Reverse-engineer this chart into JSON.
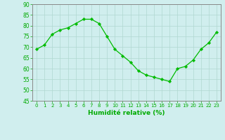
{
  "x": [
    0,
    1,
    2,
    3,
    4,
    5,
    6,
    7,
    8,
    9,
    10,
    11,
    12,
    13,
    14,
    15,
    16,
    17,
    18,
    19,
    20,
    21,
    22,
    23
  ],
  "y": [
    69,
    71,
    76,
    78,
    79,
    81,
    83,
    83,
    81,
    75,
    69,
    66,
    63,
    59,
    57,
    56,
    55,
    54,
    60,
    61,
    64,
    69,
    72,
    77
  ],
  "line_color": "#00bb00",
  "marker_color": "#00bb00",
  "bg_color": "#d0eeee",
  "grid_color": "#b0d8d0",
  "xlabel": "Humidité relative (%)",
  "xlabel_color": "#00aa00",
  "tick_color": "#00aa00",
  "ylim": [
    45,
    90
  ],
  "yticks": [
    45,
    50,
    55,
    60,
    65,
    70,
    75,
    80,
    85,
    90
  ],
  "xlim": [
    -0.5,
    23.5
  ],
  "xticks": [
    0,
    1,
    2,
    3,
    4,
    5,
    6,
    7,
    8,
    9,
    10,
    11,
    12,
    13,
    14,
    15,
    16,
    17,
    18,
    19,
    20,
    21,
    22,
    23
  ]
}
